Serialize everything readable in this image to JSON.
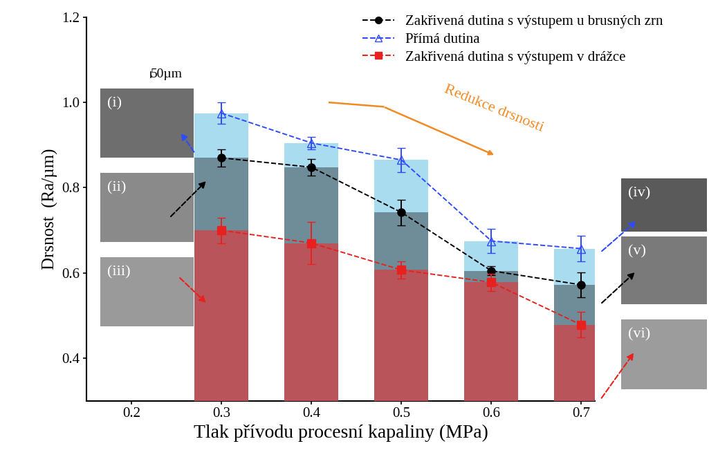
{
  "chart_data": {
    "type": "bar",
    "x_label": "Tlak přívodu procesní kapaliny (MPa)",
    "y_label": "Drsnost  (Ra/µm)",
    "x": [
      0.3,
      0.4,
      0.5,
      0.6,
      0.7
    ],
    "xlim": [
      0.15,
      0.715
    ],
    "xticks": [
      0.2,
      0.3,
      0.4,
      0.5,
      0.6,
      0.7
    ],
    "ylim": [
      0.3,
      1.2
    ],
    "yticks": [
      0.4,
      0.6,
      0.8,
      1.0,
      1.2
    ],
    "grid": false,
    "legend": "upper right",
    "series": [
      {
        "name": "Přímá dutina",
        "type": "bar",
        "color": "#2f4bff",
        "marker": "triangle",
        "line_style": "dashed",
        "colors": [
          "#aadcf0",
          "#aadcf0",
          "#aadcf0",
          "#aadcf0",
          "#aadcf0"
        ],
        "values": [
          0.975,
          0.905,
          0.865,
          0.675,
          0.657
        ],
        "errors": [
          0.025,
          0.015,
          0.028,
          0.028,
          0.03
        ]
      },
      {
        "name": "Zakřivená dutina s výstupem u brusných zrn",
        "type": "bar",
        "color": "#000000",
        "marker": "circle",
        "line_style": "dashed",
        "colors": [
          "#6f8c99",
          "#6f8c99",
          "#6f8c99",
          "#6f8c99",
          "#6f8c99"
        ],
        "values": [
          0.87,
          0.848,
          0.742,
          0.605,
          0.572
        ],
        "errors": [
          0.02,
          0.02,
          0.03,
          0.01,
          0.03
        ]
      },
      {
        "name": "Zakřivená dutina s výstupem v drážce",
        "type": "bar",
        "color": "#e8211f",
        "marker": "square",
        "line_style": "dashed",
        "colors": [
          "#b9545a",
          "#b9545a",
          "#b9545a",
          "#b9545a",
          "#b9545a"
        ],
        "values": [
          0.7,
          0.67,
          0.607,
          0.578,
          0.478
        ],
        "errors": [
          0.03,
          0.05,
          0.02,
          0.02,
          0.03
        ]
      }
    ],
    "annotations": [
      "Redukce drsnosti",
      "50µm"
    ],
    "insets": [
      "(i)",
      "(ii)",
      "(iii)",
      "(iv)",
      "(v)",
      "(vi)"
    ]
  }
}
